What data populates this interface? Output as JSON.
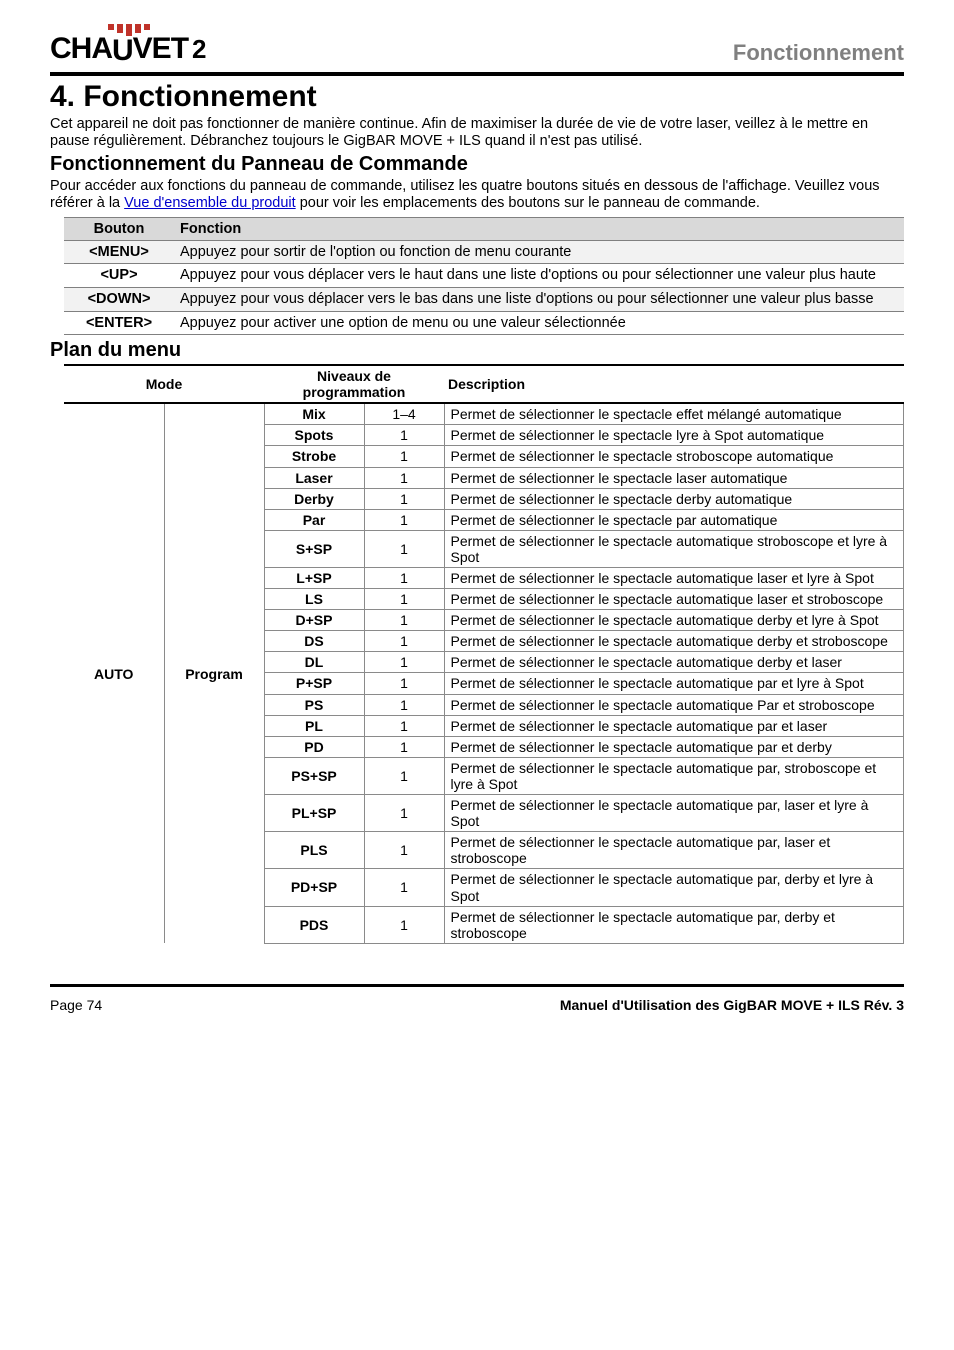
{
  "header": {
    "brand_a": "CHA",
    "brand_b": "VET",
    "brand_dj": "2",
    "section_title": "Fonctionnement"
  },
  "chapter_title": "4. Fonctionnement",
  "intro_p1": "Cet appareil ne doit pas fonctionner de manière continue. Afin de maximiser la durée de vie de votre laser, veillez à le mettre en pause régulièrement. Débranchez toujours le GigBAR MOVE + ILS quand il n'est pas utilisé.",
  "panel_section_title": "Fonctionnement du Panneau de Commande",
  "panel_intro_pre": "Pour accéder aux fonctions du panneau de commande, utilisez les quatre boutons situés en dessous de l'affichage. Veuillez vous référer à la ",
  "panel_intro_link": "Vue d'ensemble du produit",
  "panel_intro_post": " pour voir les emplacements des boutons sur le panneau de commande.",
  "button_table": {
    "header_button": "Bouton",
    "header_function": "Fonction",
    "rows": [
      {
        "button": "<MENU>",
        "fn": "Appuyez pour sortir de l'option ou fonction de menu courante"
      },
      {
        "button": "<UP>",
        "fn": "Appuyez pour vous déplacer vers le haut dans une liste d'options ou pour sélectionner une valeur plus haute"
      },
      {
        "button": "<DOWN>",
        "fn": "Appuyez pour vous déplacer vers le bas dans une liste d'options ou pour sélectionner une valeur plus basse"
      },
      {
        "button": "<ENTER>",
        "fn": "Appuyez pour activer une option de menu ou une valeur sélectionnée"
      }
    ]
  },
  "plan_title": "Plan du menu",
  "menu_table": {
    "header_mode": "Mode",
    "header_niveaux": "Niveaux de programmation",
    "header_desc": "Description",
    "mode1": "AUTO",
    "mode2": "Program",
    "rows": [
      {
        "n1": "Mix",
        "n2": "1–4",
        "desc": "Permet de sélectionner le spectacle effet mélangé automatique"
      },
      {
        "n1": "Spots",
        "n2": "1",
        "desc": "Permet de sélectionner le spectacle lyre à Spot automatique"
      },
      {
        "n1": "Strobe",
        "n2": "1",
        "desc": "Permet de sélectionner le spectacle stroboscope automatique"
      },
      {
        "n1": "Laser",
        "n2": "1",
        "desc": "Permet de sélectionner le spectacle laser automatique"
      },
      {
        "n1": "Derby",
        "n2": "1",
        "desc": "Permet de sélectionner le spectacle derby automatique"
      },
      {
        "n1": "Par",
        "n2": "1",
        "desc": "Permet de sélectionner le spectacle par automatique"
      },
      {
        "n1": "S+SP",
        "n2": "1",
        "desc": "Permet de sélectionner le spectacle automatique stroboscope et lyre à Spot"
      },
      {
        "n1": "L+SP",
        "n2": "1",
        "desc": "Permet de sélectionner le spectacle automatique laser et lyre à Spot"
      },
      {
        "n1": "LS",
        "n2": "1",
        "desc": "Permet de sélectionner le spectacle automatique laser et stroboscope"
      },
      {
        "n1": "D+SP",
        "n2": "1",
        "desc": "Permet de sélectionner le spectacle automatique derby et lyre à Spot"
      },
      {
        "n1": "DS",
        "n2": "1",
        "desc": "Permet de sélectionner le spectacle automatique derby et stroboscope"
      },
      {
        "n1": "DL",
        "n2": "1",
        "desc": "Permet de sélectionner le spectacle automatique derby et laser"
      },
      {
        "n1": "P+SP",
        "n2": "1",
        "desc": "Permet de sélectionner le spectacle automatique par et lyre à Spot"
      },
      {
        "n1": "PS",
        "n2": "1",
        "desc": "Permet de sélectionner le spectacle automatique Par et stroboscope"
      },
      {
        "n1": "PL",
        "n2": "1",
        "desc": "Permet de sélectionner le spectacle automatique par et laser"
      },
      {
        "n1": "PD",
        "n2": "1",
        "desc": "Permet de sélectionner le spectacle automatique par et derby"
      },
      {
        "n1": "PS+SP",
        "n2": "1",
        "desc": "Permet de sélectionner le spectacle automatique par, stroboscope et lyre à Spot"
      },
      {
        "n1": "PL+SP",
        "n2": "1",
        "desc": "Permet de sélectionner le spectacle automatique par, laser et lyre à Spot"
      },
      {
        "n1": "PLS",
        "n2": "1",
        "desc": "Permet de sélectionner le spectacle automatique par, laser et stroboscope"
      },
      {
        "n1": "PD+SP",
        "n2": "1",
        "desc": "Permet de sélectionner le spectacle automatique par, derby et lyre à Spot"
      },
      {
        "n1": "PDS",
        "n2": "1",
        "desc": "Permet de sélectionner le spectacle automatique par, derby et stroboscope"
      }
    ]
  },
  "footer": {
    "page": "Page 74",
    "manual": "Manuel d'Utilisation des GigBAR MOVE + ILS Rév. 3"
  }
}
